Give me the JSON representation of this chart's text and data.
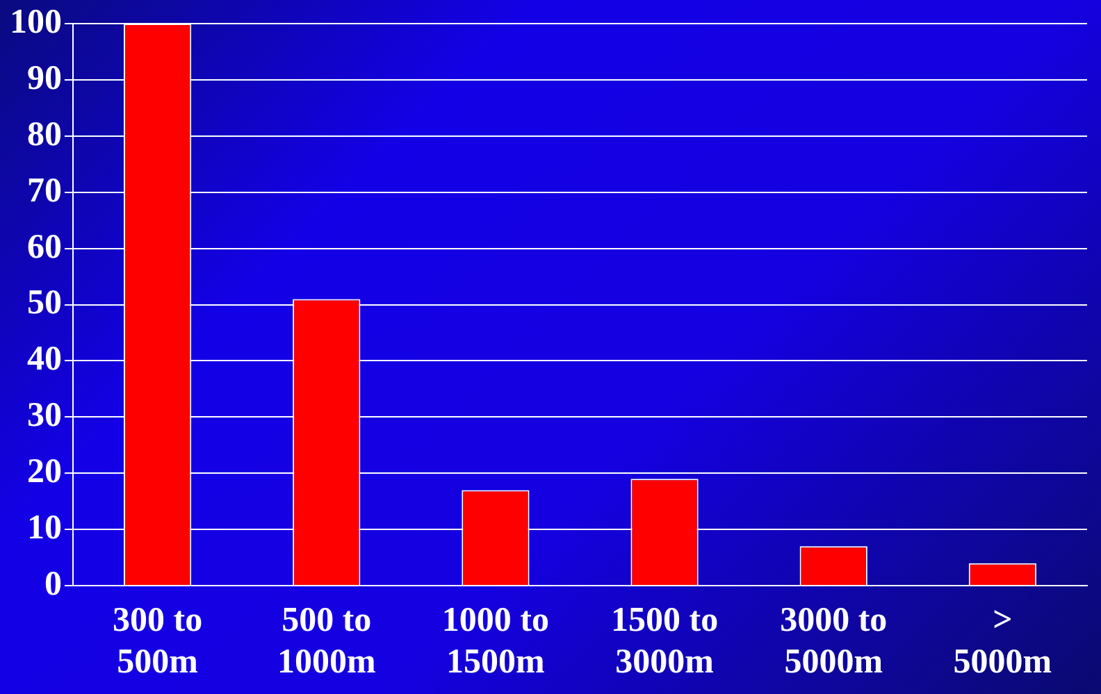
{
  "chart_data": {
    "type": "bar",
    "categories": [
      "300 to 500m",
      "500 to 1000m",
      "1000 to 1500m",
      "1500 to 3000m",
      "3000 to 5000m",
      "> 5000m"
    ],
    "values": [
      100,
      51,
      17,
      19,
      7,
      4
    ],
    "color": "#ff0000",
    "ylim": [
      0,
      100
    ],
    "yticks": [
      0,
      10,
      20,
      30,
      40,
      50,
      60,
      70,
      80,
      90,
      100
    ],
    "grid": "y"
  }
}
